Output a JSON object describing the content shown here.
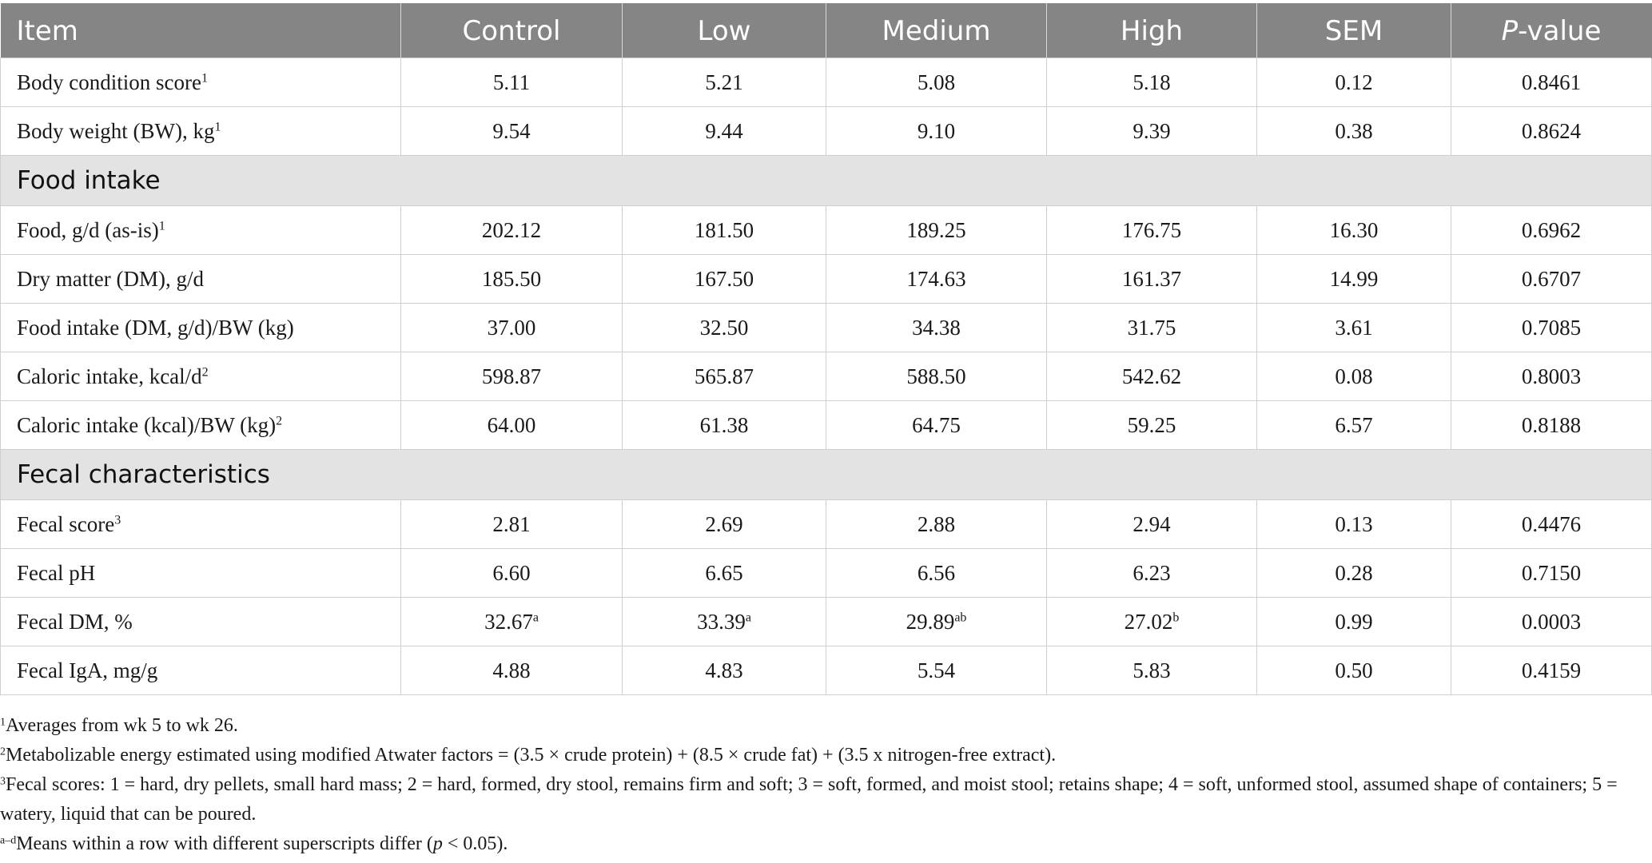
{
  "table": {
    "headers": {
      "item": "Item",
      "control": "Control",
      "low": "Low",
      "medium": "Medium",
      "high": "High",
      "sem": "SEM",
      "p_italic": "P",
      "p_rest": "-value"
    },
    "groups": [
      {
        "section": "",
        "rows": [
          {
            "label": "Body condition score",
            "sup": "1",
            "values": [
              "5.11",
              "5.21",
              "5.08",
              "5.18",
              "0.12",
              "0.8461"
            ],
            "value_sups": [
              "",
              "",
              "",
              "",
              "",
              ""
            ]
          },
          {
            "label": "Body weight (BW), kg",
            "sup": "1",
            "values": [
              "9.54",
              "9.44",
              "9.10",
              "9.39",
              "0.38",
              "0.8624"
            ],
            "value_sups": [
              "",
              "",
              "",
              "",
              "",
              ""
            ]
          }
        ]
      },
      {
        "section": "Food intake",
        "rows": [
          {
            "label": "Food, g/d (as-is)",
            "sup": "1",
            "values": [
              "202.12",
              "181.50",
              "189.25",
              "176.75",
              "16.30",
              "0.6962"
            ],
            "value_sups": [
              "",
              "",
              "",
              "",
              "",
              ""
            ]
          },
          {
            "label": "Dry matter (DM), g/d",
            "sup": "",
            "values": [
              "185.50",
              "167.50",
              "174.63",
              "161.37",
              "14.99",
              "0.6707"
            ],
            "value_sups": [
              "",
              "",
              "",
              "",
              "",
              ""
            ]
          },
          {
            "label": "Food intake (DM, g/d)/BW (kg)",
            "sup": "",
            "values": [
              "37.00",
              "32.50",
              "34.38",
              "31.75",
              "3.61",
              "0.7085"
            ],
            "value_sups": [
              "",
              "",
              "",
              "",
              "",
              ""
            ]
          },
          {
            "label": "Caloric intake, kcal/d",
            "sup": "2",
            "values": [
              "598.87",
              "565.87",
              "588.50",
              "542.62",
              "0.08",
              "0.8003"
            ],
            "value_sups": [
              "",
              "",
              "",
              "",
              "",
              ""
            ]
          },
          {
            "label": "Caloric intake (kcal)/BW (kg)",
            "sup": "2",
            "values": [
              "64.00",
              "61.38",
              "64.75",
              "59.25",
              "6.57",
              "0.8188"
            ],
            "value_sups": [
              "",
              "",
              "",
              "",
              "",
              ""
            ]
          }
        ]
      },
      {
        "section": "Fecal characteristics",
        "rows": [
          {
            "label": "Fecal score",
            "sup": "3",
            "values": [
              "2.81",
              "2.69",
              "2.88",
              "2.94",
              "0.13",
              "0.4476"
            ],
            "value_sups": [
              "",
              "",
              "",
              "",
              "",
              ""
            ]
          },
          {
            "label": "Fecal pH",
            "sup": "",
            "values": [
              "6.60",
              "6.65",
              "6.56",
              "6.23",
              "0.28",
              "0.7150"
            ],
            "value_sups": [
              "",
              "",
              "",
              "",
              "",
              ""
            ]
          },
          {
            "label": "Fecal DM, %",
            "sup": "",
            "values": [
              "32.67",
              "33.39",
              "29.89",
              "27.02",
              "0.99",
              "0.0003"
            ],
            "value_sups": [
              "a",
              "a",
              "ab",
              "b",
              "",
              ""
            ]
          },
          {
            "label": "Fecal IgA, mg/g",
            "sup": "",
            "values": [
              "4.88",
              "4.83",
              "5.54",
              "5.83",
              "0.50",
              "0.4159"
            ],
            "value_sups": [
              "",
              "",
              "",
              "",
              "",
              ""
            ]
          }
        ]
      }
    ]
  },
  "footnotes": [
    {
      "sup": "1",
      "text": "Averages from wk 5 to wk 26."
    },
    {
      "sup": "2",
      "text": "Metabolizable energy estimated using modified Atwater factors = (3.5 × crude protein) + (8.5 × crude fat) + (3.5 x nitrogen-free extract)."
    },
    {
      "sup": "3",
      "text": "Fecal scores: 1 = hard, dry pellets, small hard mass; 2 = hard, formed, dry stool, remains firm and soft; 3 = soft, formed, and moist stool; retains shape; 4 = soft, unformed stool, assumed shape of containers; 5 = watery, liquid that can be poured."
    },
    {
      "sup": "a–d",
      "text_pre": "Means within a row with different superscripts differ (",
      "text_ital": "p",
      "text_post": " < 0.05)."
    }
  ]
}
